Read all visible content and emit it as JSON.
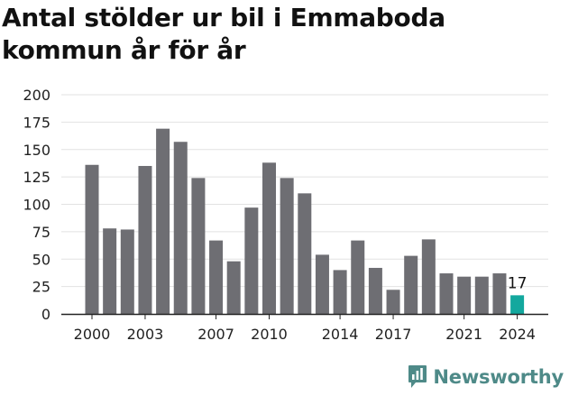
{
  "title": "Antal stölder ur bil i Emmaboda kommun år för år",
  "brand": {
    "name": "Newsworthy",
    "color": "#4e8a88"
  },
  "chart_data": {
    "type": "bar",
    "title": "Antal stölder ur bil i Emmaboda kommun år för år",
    "xlabel": "",
    "ylabel": "",
    "ylim": [
      0,
      200
    ],
    "yticks": [
      0,
      25,
      50,
      75,
      100,
      125,
      150,
      175,
      200
    ],
    "grid": true,
    "categories": [
      "2000",
      "2001",
      "2002",
      "2003",
      "2004",
      "2005",
      "2006",
      "2007",
      "2008",
      "2009",
      "2010",
      "2011",
      "2012",
      "2013",
      "2014",
      "2015",
      "2016",
      "2017",
      "2018",
      "2019",
      "2020",
      "2021",
      "2022",
      "2023",
      "2024"
    ],
    "xtick_labels": [
      "2000",
      "2003",
      "2007",
      "2010",
      "2014",
      "2017",
      "2021",
      "2024"
    ],
    "values": [
      136,
      78,
      77,
      135,
      169,
      157,
      124,
      67,
      48,
      97,
      138,
      124,
      110,
      54,
      40,
      67,
      42,
      22,
      53,
      68,
      37,
      34,
      34,
      37,
      17
    ],
    "bar_color": "#6e6e73",
    "highlight_color": "#13a89e",
    "highlight_category": "2024",
    "highlight_label": "17"
  }
}
